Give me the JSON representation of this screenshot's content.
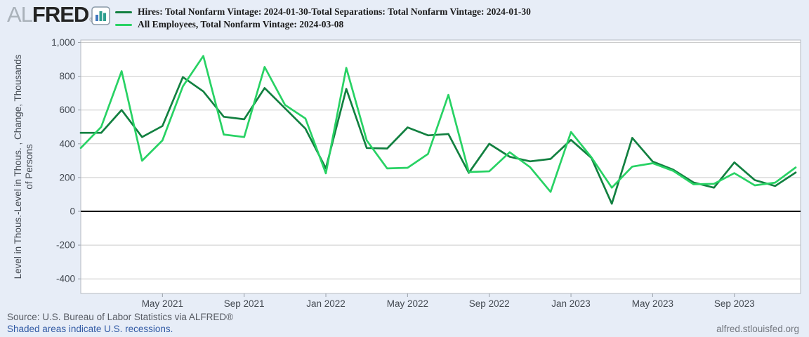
{
  "header": {
    "logo": {
      "prefix": "AL",
      "brand": "FRED",
      "registered": "®"
    },
    "logo_icon": {
      "name": "bar-chart-icon",
      "bar_colors": [
        "#4178be",
        "#2f9e8f",
        "#2f9e8f"
      ]
    },
    "legend": [
      {
        "label": "Hires: Total Nonfarm Vintage: 2024-01-30-Total Separations: Total Nonfarm Vintage: 2024-01-30",
        "color": "#128040"
      },
      {
        "label": "All Employees, Total Nonfarm Vintage: 2024-03-08",
        "color": "#28d264"
      }
    ]
  },
  "footer": {
    "source": "Source: U.S. Bureau of Labor Statistics via ALFRED®",
    "recessions_link": "Shaded areas indicate U.S. recessions.",
    "url": "alfred.stlouisfed.org"
  },
  "chart_data": {
    "type": "line",
    "x": [
      "2021-01",
      "2021-02",
      "2021-03",
      "2021-04",
      "2021-05",
      "2021-06",
      "2021-07",
      "2021-08",
      "2021-09",
      "2021-10",
      "2021-11",
      "2021-12",
      "2022-01",
      "2022-02",
      "2022-03",
      "2022-04",
      "2022-05",
      "2022-06",
      "2022-07",
      "2022-08",
      "2022-09",
      "2022-10",
      "2022-11",
      "2022-12",
      "2023-01",
      "2023-02",
      "2023-03",
      "2023-04",
      "2023-05",
      "2023-06",
      "2023-07",
      "2023-08",
      "2023-09",
      "2023-10",
      "2023-11",
      "2023-12"
    ],
    "series": [
      {
        "name": "Hires: Total Nonfarm Vintage: 2024-01-30-Total Separations: Total Nonfarm Vintage: 2024-01-30",
        "color": "#128040",
        "values": [
          465,
          465,
          600,
          440,
          505,
          795,
          710,
          560,
          545,
          730,
          610,
          490,
          255,
          725,
          375,
          372,
          497,
          450,
          458,
          228,
          400,
          323,
          296,
          310,
          423,
          317,
          45,
          435,
          295,
          247,
          171,
          140,
          290,
          185,
          150,
          230
        ]
      },
      {
        "name": "All Employees, Total Nonfarm Vintage: 2024-03-08",
        "color": "#28d264",
        "values": [
          375,
          500,
          830,
          300,
          420,
          740,
          920,
          455,
          440,
          855,
          630,
          550,
          225,
          850,
          420,
          254,
          258,
          340,
          690,
          233,
          237,
          350,
          261,
          115,
          470,
          320,
          140,
          265,
          285,
          240,
          160,
          163,
          226,
          154,
          170,
          260
        ]
      }
    ],
    "ylabel_line1": "Level in Thous.-Level in Thous. , Change, Thousands",
    "ylabel_line2": "of Persons",
    "yticks": [
      1000,
      800,
      600,
      400,
      200,
      0,
      -200,
      -400
    ],
    "xticks": [
      {
        "label": "May 2021",
        "index": 4
      },
      {
        "label": "Sep 2021",
        "index": 8
      },
      {
        "label": "Jan 2022",
        "index": 12
      },
      {
        "label": "May 2022",
        "index": 16
      },
      {
        "label": "Sep 2022",
        "index": 20
      },
      {
        "label": "Jan 2023",
        "index": 24
      },
      {
        "label": "May 2023",
        "index": 28
      },
      {
        "label": "Sep 2023",
        "index": 32
      }
    ],
    "ylim": [
      -487,
      1017
    ],
    "grid": true,
    "zero_line": true,
    "legend_position": "top",
    "plot_bg": "#ffffff",
    "grid_color": "#cccccc",
    "axis_text_color": "#444a52"
  }
}
